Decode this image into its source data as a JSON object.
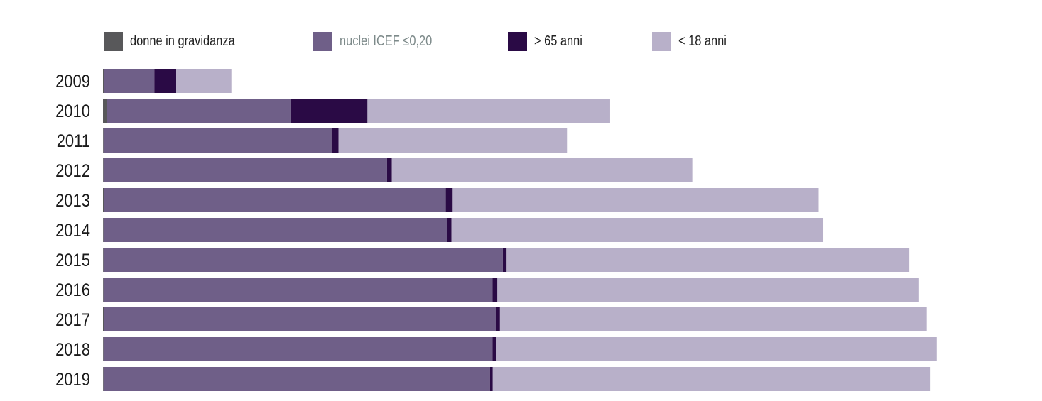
{
  "chart_data": {
    "type": "bar",
    "orientation": "horizontal",
    "stacked": true,
    "title": "",
    "xlabel": "",
    "ylabel": "",
    "categories": [
      "2009",
      "2010",
      "2011",
      "2012",
      "2013",
      "2014",
      "2015",
      "2016",
      "2017",
      "2018",
      "2019"
    ],
    "series": [
      {
        "name": "donne in gravidanza",
        "color": "#58585a",
        "values": [
          0.3,
          1.6,
          0.2,
          0.2,
          0.3,
          0.2,
          0.2,
          0.2,
          0.3,
          0.2,
          0.2
        ]
      },
      {
        "name": "nuclei ICEF ≤0,20",
        "color": "#6f5f88",
        "values": [
          19.7,
          71.4,
          88.8,
          110.4,
          133.2,
          133.8,
          155.5,
          151.5,
          152.8,
          151.5,
          150.5
        ]
      },
      {
        "name": "> 65 anni",
        "color": "#2a0a45",
        "values": [
          8.5,
          30.0,
          2.7,
          1.9,
          2.7,
          1.7,
          1.5,
          1.9,
          1.5,
          1.3,
          1.1
        ]
      },
      {
        "name": "< 18 anni",
        "color": "#b8b0c9",
        "values": [
          21.5,
          94.5,
          89.0,
          117.0,
          142.5,
          144.8,
          156.8,
          164.2,
          166.2,
          171.7,
          170.5
        ]
      }
    ],
    "xlim": [
      0,
      350
    ],
    "grid": false,
    "legend_position": "top",
    "legend_color_overrides": {
      "nuclei ICEF ≤0,20": "#7d8a8a"
    }
  }
}
